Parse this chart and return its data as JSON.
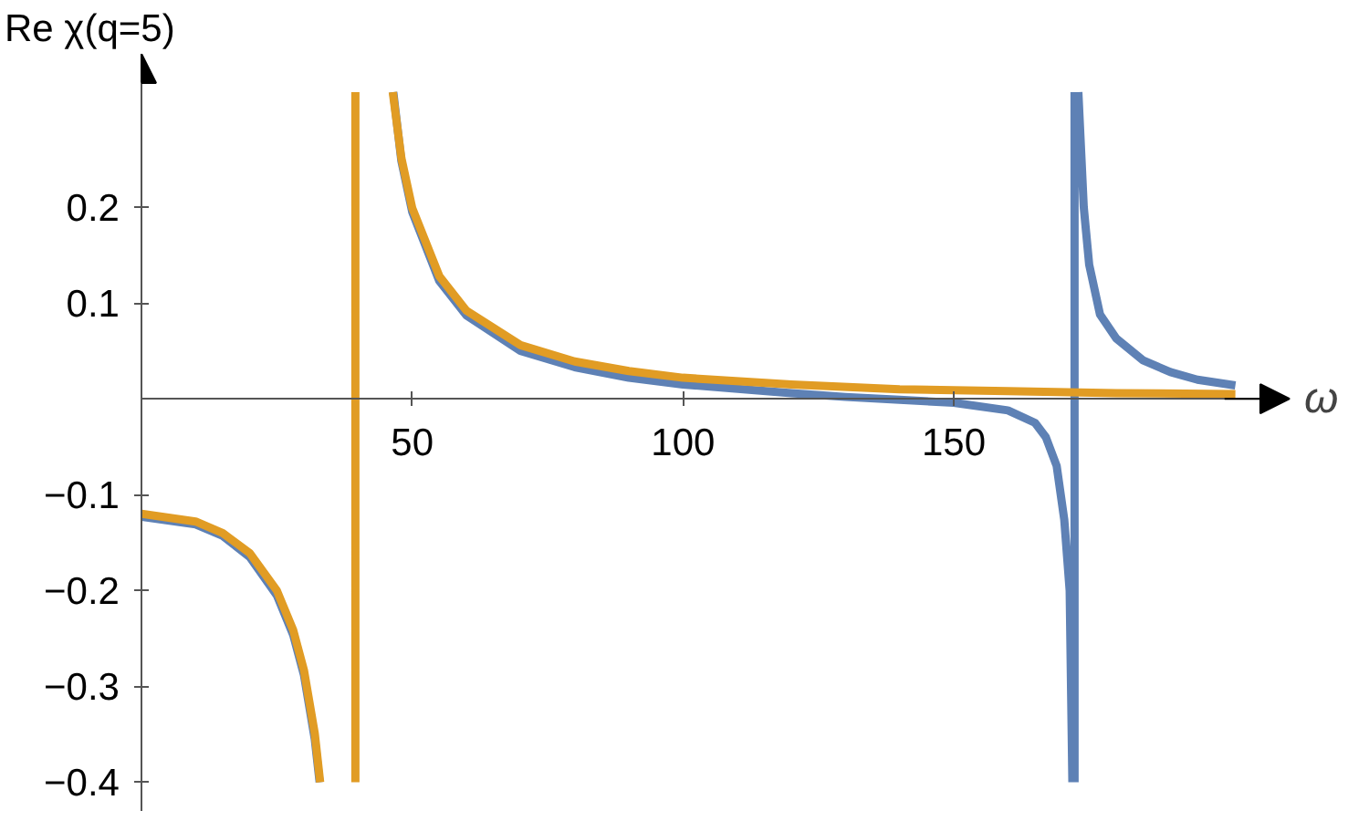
{
  "chart_data": {
    "type": "line",
    "xlabel": "ω",
    "ylabel": "Re χ(q=5)",
    "xlim": [
      0,
      212
    ],
    "ylim": [
      -0.43,
      0.36
    ],
    "xticks": [
      50,
      100,
      150
    ],
    "yticks": [
      {
        "value": -0.4,
        "label": "−0.4"
      },
      {
        "value": -0.3,
        "label": "−0.3"
      },
      {
        "value": -0.2,
        "label": "−0.2"
      },
      {
        "value": -0.1,
        "label": "−0.1"
      },
      0.1,
      0.2
    ],
    "grid": false,
    "line_style": "solid",
    "marker": "none",
    "series": [
      {
        "color": "#5e81b5",
        "x": [
          0,
          10,
          15,
          20,
          25,
          28,
          30,
          32,
          32.9,
          null,
          46.5,
          48,
          50,
          55,
          60,
          70,
          80,
          90,
          100,
          120,
          130,
          140,
          150,
          160,
          165,
          167,
          169,
          170.4,
          171.4,
          171.9,
          null,
          172.3,
          172.3,
          null,
          173,
          174,
          175,
          177,
          180,
          185,
          190,
          195,
          202
        ],
        "values": [
          -0.123,
          -0.131,
          -0.143,
          -0.165,
          -0.205,
          -0.246,
          -0.288,
          -0.355,
          -0.4,
          null,
          0.32,
          0.248,
          0.195,
          0.123,
          0.087,
          0.05,
          0.033,
          0.022,
          0.015,
          0.006,
          0.002,
          -0.001,
          -0.004,
          -0.012,
          -0.025,
          -0.04,
          -0.07,
          -0.126,
          -0.2,
          -0.4,
          null,
          -0.4,
          0.32,
          null,
          0.32,
          0.2,
          0.14,
          0.088,
          0.063,
          0.04,
          0.028,
          0.02,
          0.014
        ]
      },
      {
        "color": "#e19c24",
        "x": [
          0,
          10,
          15,
          20,
          25,
          28,
          30,
          32,
          33,
          null,
          39.5,
          39.5,
          null,
          46.4,
          48,
          50,
          55,
          60,
          70,
          80,
          90,
          100,
          120,
          140,
          160,
          180,
          202
        ],
        "values": [
          -0.12,
          -0.128,
          -0.14,
          -0.161,
          -0.2,
          -0.241,
          -0.283,
          -0.349,
          -0.4,
          null,
          -0.4,
          0.32,
          null,
          0.32,
          0.251,
          0.199,
          0.128,
          0.092,
          0.056,
          0.039,
          0.029,
          0.022,
          0.015,
          0.01,
          0.008,
          0.006,
          0.005
        ]
      }
    ]
  }
}
